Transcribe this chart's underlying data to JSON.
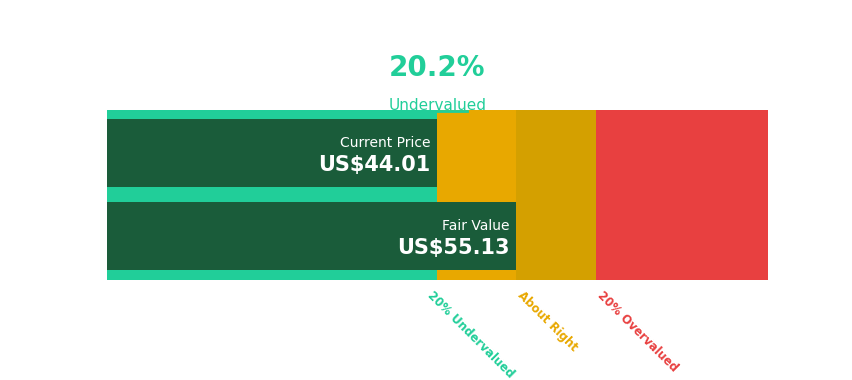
{
  "title_percent": "20.2%",
  "title_label": "Undervalued",
  "title_color": "#21ce99",
  "title_percent_fontsize": 20,
  "title_label_fontsize": 11,
  "underline_color": "#21ce99",
  "current_price_label": "Current Price",
  "current_price_value": "US$44.01",
  "fair_value_label": "Fair Value",
  "fair_value_value": "US$55.13",
  "bar_colors": {
    "green_light": "#21ce99",
    "green_dark": "#1a5c3a",
    "yellow1": "#e8a800",
    "yellow2": "#d4a000",
    "red": "#e84040"
  },
  "segments": [
    0.5,
    0.12,
    0.12,
    0.26
  ],
  "bottom_labels": [
    {
      "text": "20% Undervalued",
      "color": "#21ce99"
    },
    {
      "text": "About Right",
      "color": "#e8a800"
    },
    {
      "text": "20% Overvalued",
      "color": "#e84040"
    }
  ],
  "background_color": "#ffffff",
  "price_label_fontsize": 10,
  "price_value_fontsize": 15
}
